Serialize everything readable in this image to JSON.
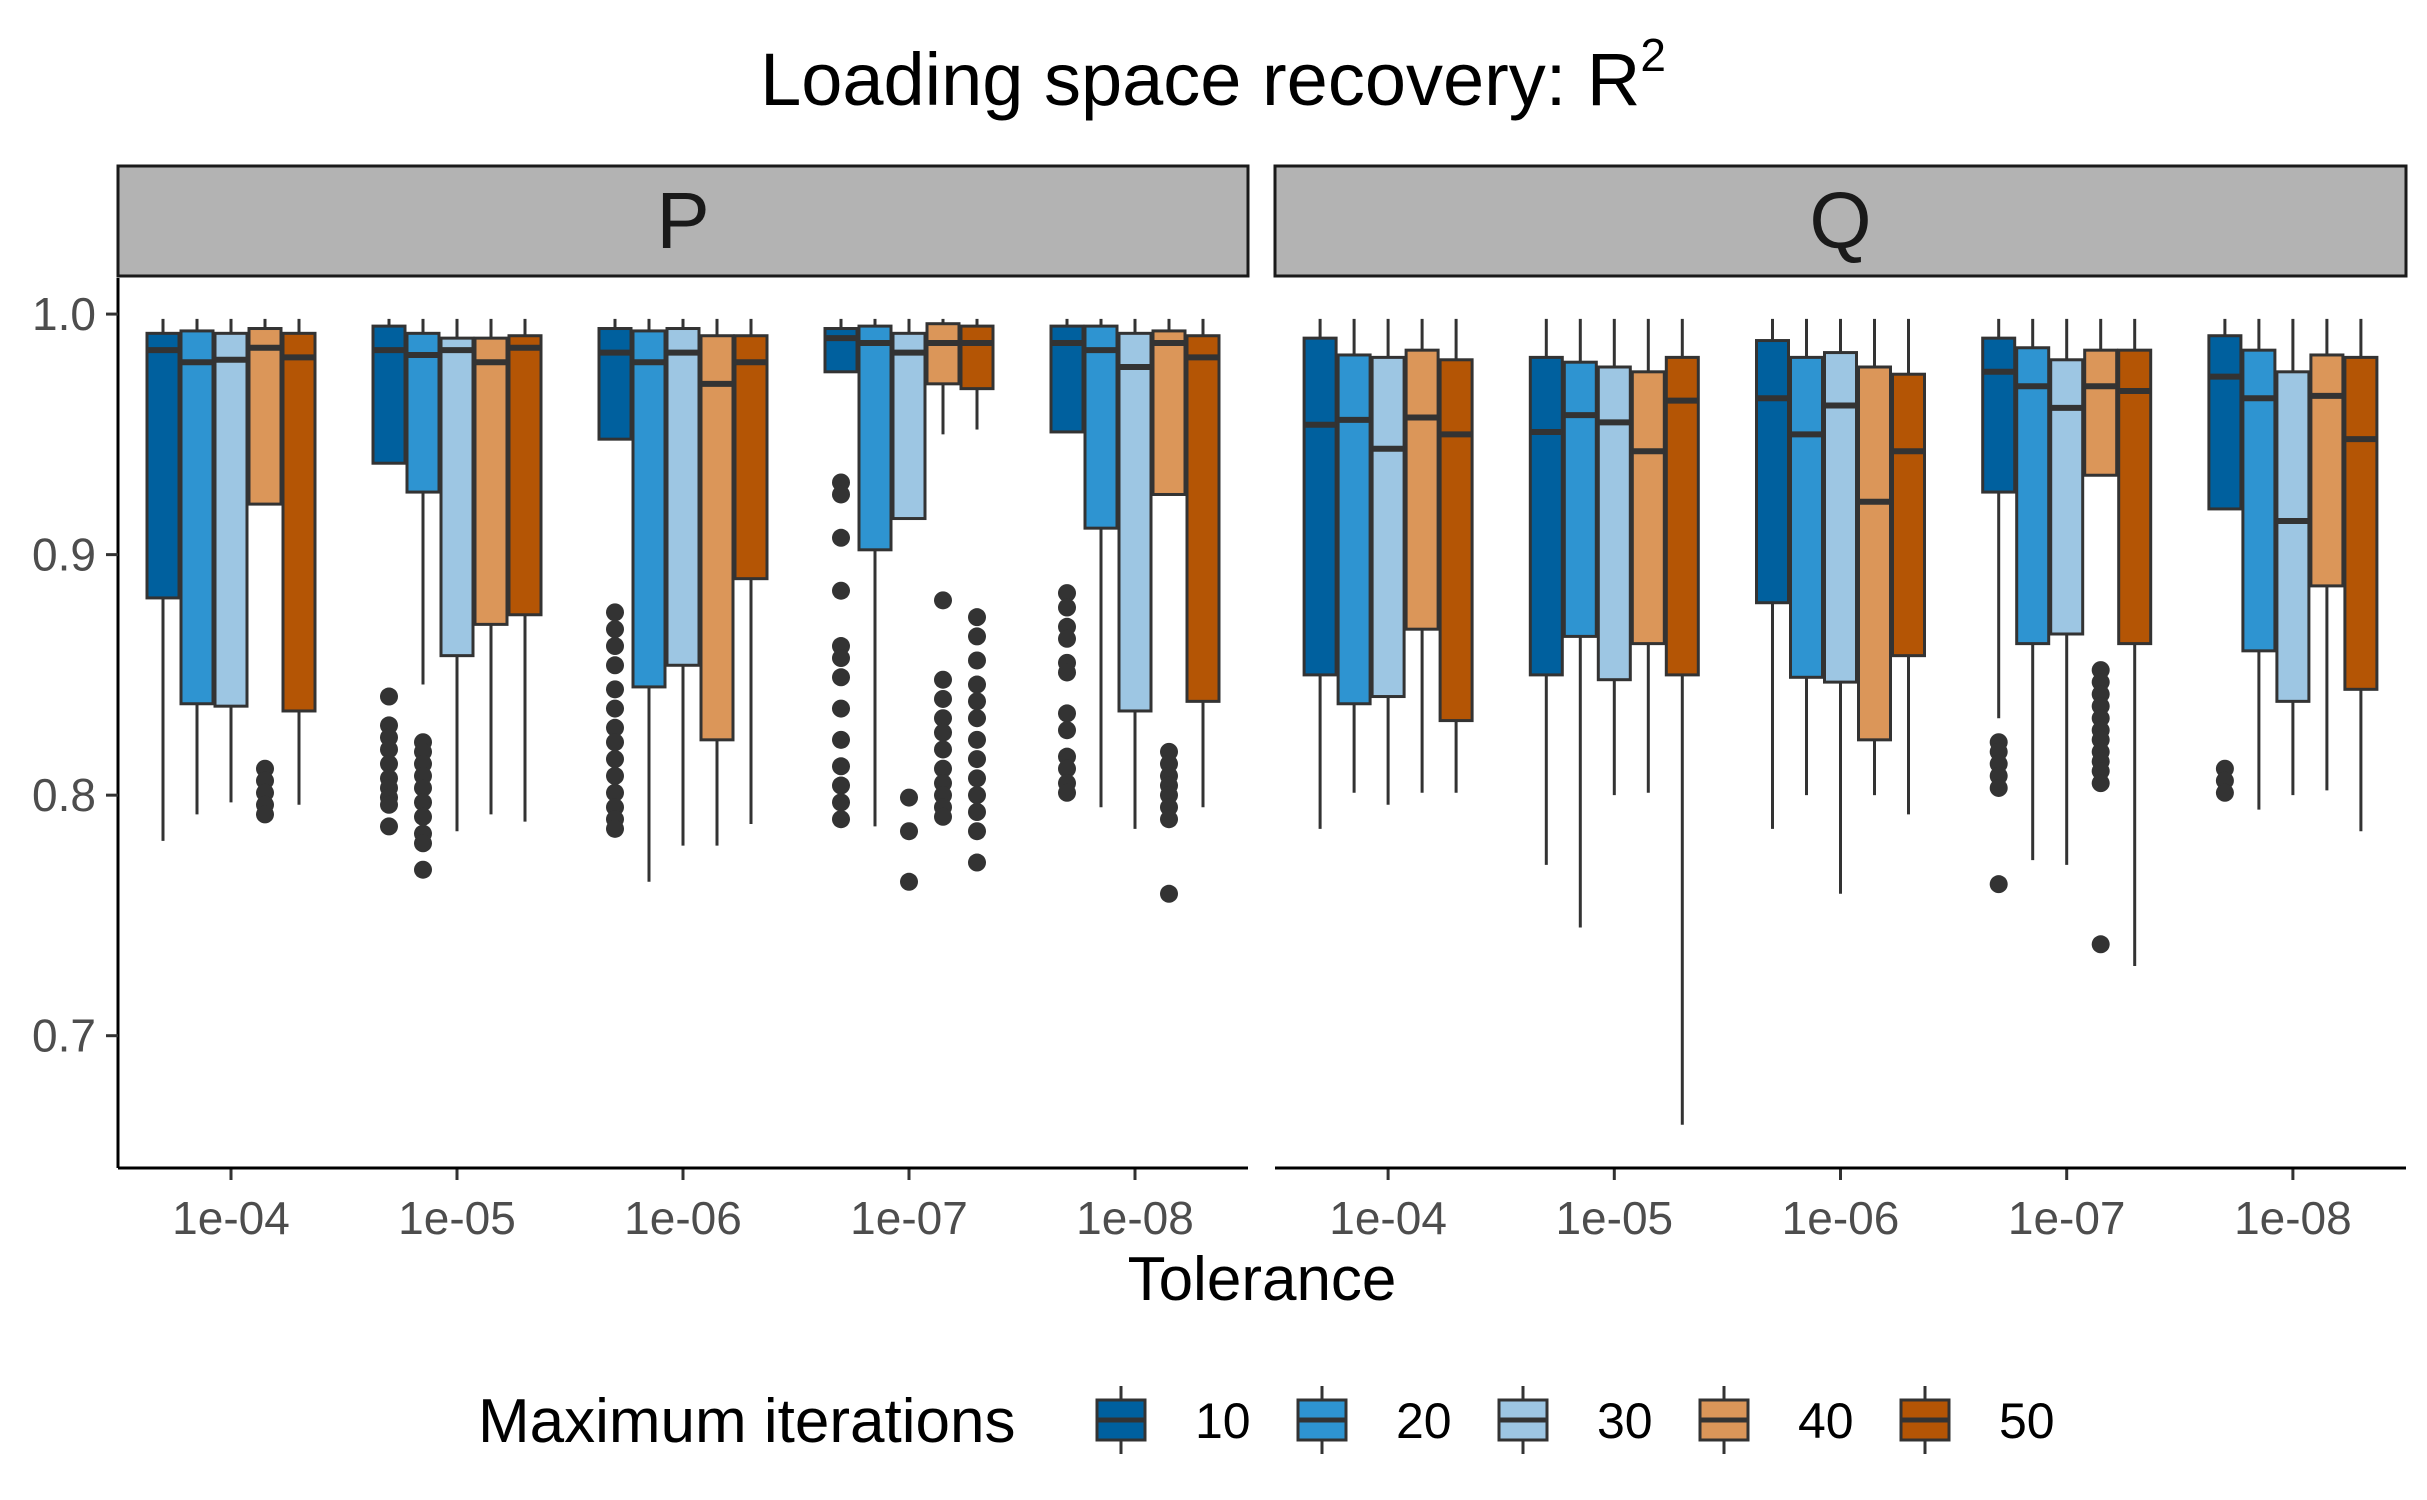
{
  "chart_data": {
    "type": "boxplot",
    "title": "Loading space recovery: R",
    "title_superscript": "2",
    "xlabel": "Tolerance",
    "ylabel": "",
    "ylim": [
      0.645,
      1.015
    ],
    "y_ticks": [
      0.7,
      0.8,
      0.9,
      1.0
    ],
    "y_tick_labels": [
      "0.7",
      "0.8",
      "0.9",
      "1.0"
    ],
    "grid": false,
    "categories": [
      "1e-04",
      "1e-05",
      "1e-06",
      "1e-07",
      "1e-08"
    ],
    "legend": {
      "title": "Maximum iterations",
      "position": "bottom",
      "entries": [
        {
          "label": "10",
          "color": "#00609E"
        },
        {
          "label": "20",
          "color": "#2E94D1"
        },
        {
          "label": "30",
          "color": "#9DC6E3"
        },
        {
          "label": "40",
          "color": "#DB9659"
        },
        {
          "label": "50",
          "color": "#B45505"
        }
      ]
    },
    "panels": [
      {
        "label": "P",
        "groups": [
          {
            "tolerance": "1e-04",
            "boxes": [
              {
                "series": "10",
                "whisker_low": 0.781,
                "q1": 0.882,
                "median": 0.985,
                "q3": 0.992,
                "whisker_high": 0.998,
                "outliers": []
              },
              {
                "series": "20",
                "whisker_low": 0.792,
                "q1": 0.838,
                "median": 0.98,
                "q3": 0.993,
                "whisker_high": 0.998,
                "outliers": []
              },
              {
                "series": "30",
                "whisker_low": 0.797,
                "q1": 0.837,
                "median": 0.981,
                "q3": 0.992,
                "whisker_high": 0.998,
                "outliers": []
              },
              {
                "series": "40",
                "whisker_low": 0.921,
                "q1": 0.921,
                "median": 0.986,
                "q3": 0.994,
                "whisker_high": 0.998,
                "outliers": [
                  0.811,
                  0.806,
                  0.801,
                  0.796,
                  0.792
                ]
              },
              {
                "series": "50",
                "whisker_low": 0.796,
                "q1": 0.835,
                "median": 0.982,
                "q3": 0.992,
                "whisker_high": 0.998,
                "outliers": []
              }
            ]
          },
          {
            "tolerance": "1e-05",
            "boxes": [
              {
                "series": "10",
                "whisker_low": 0.938,
                "q1": 0.938,
                "median": 0.985,
                "q3": 0.995,
                "whisker_high": 0.998,
                "outliers": [
                  0.841,
                  0.829,
                  0.824,
                  0.819,
                  0.813,
                  0.807,
                  0.803,
                  0.799,
                  0.796,
                  0.787
                ]
              },
              {
                "series": "20",
                "whisker_low": 0.846,
                "q1": 0.926,
                "median": 0.983,
                "q3": 0.992,
                "whisker_high": 0.998,
                "outliers": [
                  0.822,
                  0.818,
                  0.813,
                  0.808,
                  0.803,
                  0.797,
                  0.791,
                  0.784,
                  0.78,
                  0.769
                ]
              },
              {
                "series": "30",
                "whisker_low": 0.785,
                "q1": 0.858,
                "median": 0.985,
                "q3": 0.99,
                "whisker_high": 0.998,
                "outliers": []
              },
              {
                "series": "40",
                "whisker_low": 0.792,
                "q1": 0.871,
                "median": 0.98,
                "q3": 0.99,
                "whisker_high": 0.998,
                "outliers": []
              },
              {
                "series": "50",
                "whisker_low": 0.789,
                "q1": 0.875,
                "median": 0.986,
                "q3": 0.991,
                "whisker_high": 0.998,
                "outliers": []
              }
            ]
          },
          {
            "tolerance": "1e-06",
            "boxes": [
              {
                "series": "10",
                "whisker_low": 0.948,
                "q1": 0.948,
                "median": 0.984,
                "q3": 0.994,
                "whisker_high": 0.998,
                "outliers": [
                  0.876,
                  0.869,
                  0.862,
                  0.854,
                  0.844,
                  0.836,
                  0.828,
                  0.822,
                  0.815,
                  0.808,
                  0.801,
                  0.795,
                  0.79,
                  0.786
                ]
              },
              {
                "series": "20",
                "whisker_low": 0.764,
                "q1": 0.845,
                "median": 0.98,
                "q3": 0.993,
                "whisker_high": 0.998,
                "outliers": []
              },
              {
                "series": "30",
                "whisker_low": 0.779,
                "q1": 0.854,
                "median": 0.984,
                "q3": 0.994,
                "whisker_high": 0.998,
                "outliers": []
              },
              {
                "series": "40",
                "whisker_low": 0.779,
                "q1": 0.823,
                "median": 0.971,
                "q3": 0.991,
                "whisker_high": 0.998,
                "outliers": []
              },
              {
                "series": "50",
                "whisker_low": 0.788,
                "q1": 0.89,
                "median": 0.98,
                "q3": 0.991,
                "whisker_high": 0.998,
                "outliers": []
              }
            ]
          },
          {
            "tolerance": "1e-07",
            "boxes": [
              {
                "series": "10",
                "whisker_low": 0.976,
                "q1": 0.976,
                "median": 0.99,
                "q3": 0.994,
                "whisker_high": 0.998,
                "outliers": [
                  0.93,
                  0.925,
                  0.907,
                  0.885,
                  0.862,
                  0.857,
                  0.849,
                  0.836,
                  0.823,
                  0.812,
                  0.804,
                  0.797,
                  0.79
                ]
              },
              {
                "series": "20",
                "whisker_low": 0.787,
                "q1": 0.902,
                "median": 0.988,
                "q3": 0.995,
                "whisker_high": 0.998,
                "outliers": []
              },
              {
                "series": "30",
                "whisker_low": 0.915,
                "q1": 0.915,
                "median": 0.984,
                "q3": 0.992,
                "whisker_high": 0.998,
                "outliers": [
                  0.799,
                  0.785,
                  0.764
                ]
              },
              {
                "series": "40",
                "whisker_low": 0.95,
                "q1": 0.971,
                "median": 0.988,
                "q3": 0.996,
                "whisker_high": 0.998,
                "outliers": [
                  0.881,
                  0.848,
                  0.84,
                  0.832,
                  0.826,
                  0.819,
                  0.811,
                  0.805,
                  0.8,
                  0.795,
                  0.791
                ]
              },
              {
                "series": "50",
                "whisker_low": 0.952,
                "q1": 0.969,
                "median": 0.988,
                "q3": 0.995,
                "whisker_high": 0.998,
                "outliers": [
                  0.874,
                  0.866,
                  0.856,
                  0.846,
                  0.839,
                  0.832,
                  0.823,
                  0.815,
                  0.807,
                  0.8,
                  0.793,
                  0.785,
                  0.772
                ]
              }
            ]
          },
          {
            "tolerance": "1e-08",
            "boxes": [
              {
                "series": "10",
                "whisker_low": 0.951,
                "q1": 0.951,
                "median": 0.988,
                "q3": 0.995,
                "whisker_high": 0.998,
                "outliers": [
                  0.884,
                  0.878,
                  0.87,
                  0.865,
                  0.855,
                  0.851,
                  0.834,
                  0.827,
                  0.816,
                  0.811,
                  0.805,
                  0.801
                ]
              },
              {
                "series": "20",
                "whisker_low": 0.795,
                "q1": 0.911,
                "median": 0.985,
                "q3": 0.995,
                "whisker_high": 0.998,
                "outliers": []
              },
              {
                "series": "30",
                "whisker_low": 0.786,
                "q1": 0.835,
                "median": 0.978,
                "q3": 0.992,
                "whisker_high": 0.998,
                "outliers": []
              },
              {
                "series": "40",
                "whisker_low": 0.925,
                "q1": 0.925,
                "median": 0.988,
                "q3": 0.993,
                "whisker_high": 0.998,
                "outliers": [
                  0.818,
                  0.813,
                  0.808,
                  0.804,
                  0.8,
                  0.795,
                  0.79,
                  0.759
                ]
              },
              {
                "series": "50",
                "whisker_low": 0.795,
                "q1": 0.839,
                "median": 0.982,
                "q3": 0.991,
                "whisker_high": 0.998,
                "outliers": []
              }
            ]
          }
        ]
      },
      {
        "label": "Q",
        "groups": [
          {
            "tolerance": "1e-04",
            "boxes": [
              {
                "series": "10",
                "whisker_low": 0.786,
                "q1": 0.85,
                "median": 0.954,
                "q3": 0.99,
                "whisker_high": 0.998,
                "outliers": []
              },
              {
                "series": "20",
                "whisker_low": 0.801,
                "q1": 0.838,
                "median": 0.956,
                "q3": 0.983,
                "whisker_high": 0.998,
                "outliers": []
              },
              {
                "series": "30",
                "whisker_low": 0.796,
                "q1": 0.841,
                "median": 0.944,
                "q3": 0.982,
                "whisker_high": 0.998,
                "outliers": []
              },
              {
                "series": "40",
                "whisker_low": 0.801,
                "q1": 0.869,
                "median": 0.957,
                "q3": 0.985,
                "whisker_high": 0.998,
                "outliers": []
              },
              {
                "series": "50",
                "whisker_low": 0.801,
                "q1": 0.831,
                "median": 0.95,
                "q3": 0.981,
                "whisker_high": 0.998,
                "outliers": []
              }
            ]
          },
          {
            "tolerance": "1e-05",
            "boxes": [
              {
                "series": "10",
                "whisker_low": 0.771,
                "q1": 0.85,
                "median": 0.951,
                "q3": 0.982,
                "whisker_high": 0.998,
                "outliers": []
              },
              {
                "series": "20",
                "whisker_low": 0.745,
                "q1": 0.866,
                "median": 0.958,
                "q3": 0.98,
                "whisker_high": 0.998,
                "outliers": []
              },
              {
                "series": "30",
                "whisker_low": 0.8,
                "q1": 0.848,
                "median": 0.955,
                "q3": 0.978,
                "whisker_high": 0.998,
                "outliers": []
              },
              {
                "series": "40",
                "whisker_low": 0.801,
                "q1": 0.863,
                "median": 0.943,
                "q3": 0.976,
                "whisker_high": 0.998,
                "outliers": []
              },
              {
                "series": "50",
                "whisker_low": 0.663,
                "q1": 0.85,
                "median": 0.964,
                "q3": 0.982,
                "whisker_high": 0.998,
                "outliers": []
              }
            ]
          },
          {
            "tolerance": "1e-06",
            "boxes": [
              {
                "series": "10",
                "whisker_low": 0.786,
                "q1": 0.88,
                "median": 0.965,
                "q3": 0.989,
                "whisker_high": 0.998,
                "outliers": []
              },
              {
                "series": "20",
                "whisker_low": 0.8,
                "q1": 0.849,
                "median": 0.95,
                "q3": 0.982,
                "whisker_high": 0.998,
                "outliers": []
              },
              {
                "series": "30",
                "whisker_low": 0.759,
                "q1": 0.847,
                "median": 0.962,
                "q3": 0.984,
                "whisker_high": 0.998,
                "outliers": []
              },
              {
                "series": "40",
                "whisker_low": 0.8,
                "q1": 0.823,
                "median": 0.922,
                "q3": 0.978,
                "whisker_high": 0.998,
                "outliers": []
              },
              {
                "series": "50",
                "whisker_low": 0.792,
                "q1": 0.858,
                "median": 0.943,
                "q3": 0.975,
                "whisker_high": 0.998,
                "outliers": []
              }
            ]
          },
          {
            "tolerance": "1e-07",
            "boxes": [
              {
                "series": "10",
                "whisker_low": 0.832,
                "q1": 0.926,
                "median": 0.976,
                "q3": 0.99,
                "whisker_high": 0.998,
                "outliers": [
                  0.822,
                  0.818,
                  0.813,
                  0.808,
                  0.803,
                  0.763
                ]
              },
              {
                "series": "20",
                "whisker_low": 0.773,
                "q1": 0.863,
                "median": 0.97,
                "q3": 0.986,
                "whisker_high": 0.998,
                "outliers": []
              },
              {
                "series": "30",
                "whisker_low": 0.771,
                "q1": 0.867,
                "median": 0.961,
                "q3": 0.981,
                "whisker_high": 0.998,
                "outliers": []
              },
              {
                "series": "40",
                "whisker_low": 0.933,
                "q1": 0.933,
                "median": 0.97,
                "q3": 0.985,
                "whisker_high": 0.998,
                "outliers": [
                  0.852,
                  0.847,
                  0.842,
                  0.837,
                  0.832,
                  0.827,
                  0.823,
                  0.818,
                  0.814,
                  0.81,
                  0.805,
                  0.738
                ]
              },
              {
                "series": "50",
                "whisker_low": 0.729,
                "q1": 0.863,
                "median": 0.968,
                "q3": 0.985,
                "whisker_high": 0.998,
                "outliers": []
              }
            ]
          },
          {
            "tolerance": "1e-08",
            "boxes": [
              {
                "series": "10",
                "whisker_low": 0.919,
                "q1": 0.919,
                "median": 0.974,
                "q3": 0.991,
                "whisker_high": 0.998,
                "outliers": [
                  0.811,
                  0.806,
                  0.801
                ]
              },
              {
                "series": "20",
                "whisker_low": 0.794,
                "q1": 0.86,
                "median": 0.965,
                "q3": 0.985,
                "whisker_high": 0.998,
                "outliers": []
              },
              {
                "series": "30",
                "whisker_low": 0.8,
                "q1": 0.839,
                "median": 0.914,
                "q3": 0.976,
                "whisker_high": 0.998,
                "outliers": []
              },
              {
                "series": "40",
                "whisker_low": 0.802,
                "q1": 0.887,
                "median": 0.966,
                "q3": 0.983,
                "whisker_high": 0.998,
                "outliers": []
              },
              {
                "series": "50",
                "whisker_low": 0.785,
                "q1": 0.844,
                "median": 0.948,
                "q3": 0.982,
                "whisker_high": 0.998,
                "outliers": []
              }
            ]
          }
        ]
      }
    ]
  }
}
